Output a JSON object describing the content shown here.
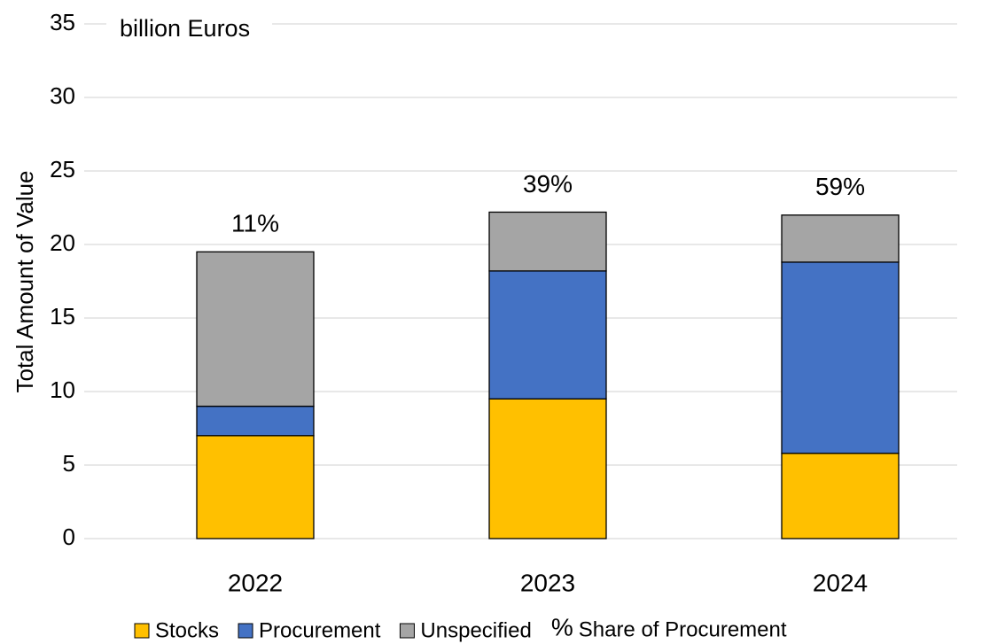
{
  "chart_data": {
    "type": "stacked_bar",
    "unit": "billion Euros",
    "y_label": "Total Amount of Value",
    "categories": [
      "2022",
      "2023",
      "2024"
    ],
    "series": [
      {
        "name": "Stocks",
        "color": "#FFC000",
        "values": [
          7.0,
          9.5,
          5.8
        ]
      },
      {
        "name": "Procurement",
        "color": "#4472C4",
        "values": [
          2.0,
          8.7,
          13.0
        ]
      },
      {
        "name": "Unspecified",
        "color": "#A5A5A5",
        "values": [
          10.5,
          4.0,
          3.2
        ]
      }
    ],
    "share": {
      "name": "Share of Procurement",
      "marker": "%",
      "color": "#4472C4",
      "values": [
        11,
        39,
        59
      ],
      "value_labels": [
        "11%",
        "39%",
        "59%"
      ]
    },
    "ylim": [
      0,
      35
    ],
    "yticks": [
      0,
      5,
      10,
      15,
      20,
      25,
      30,
      35
    ],
    "grid": true,
    "legend": "bottom"
  }
}
